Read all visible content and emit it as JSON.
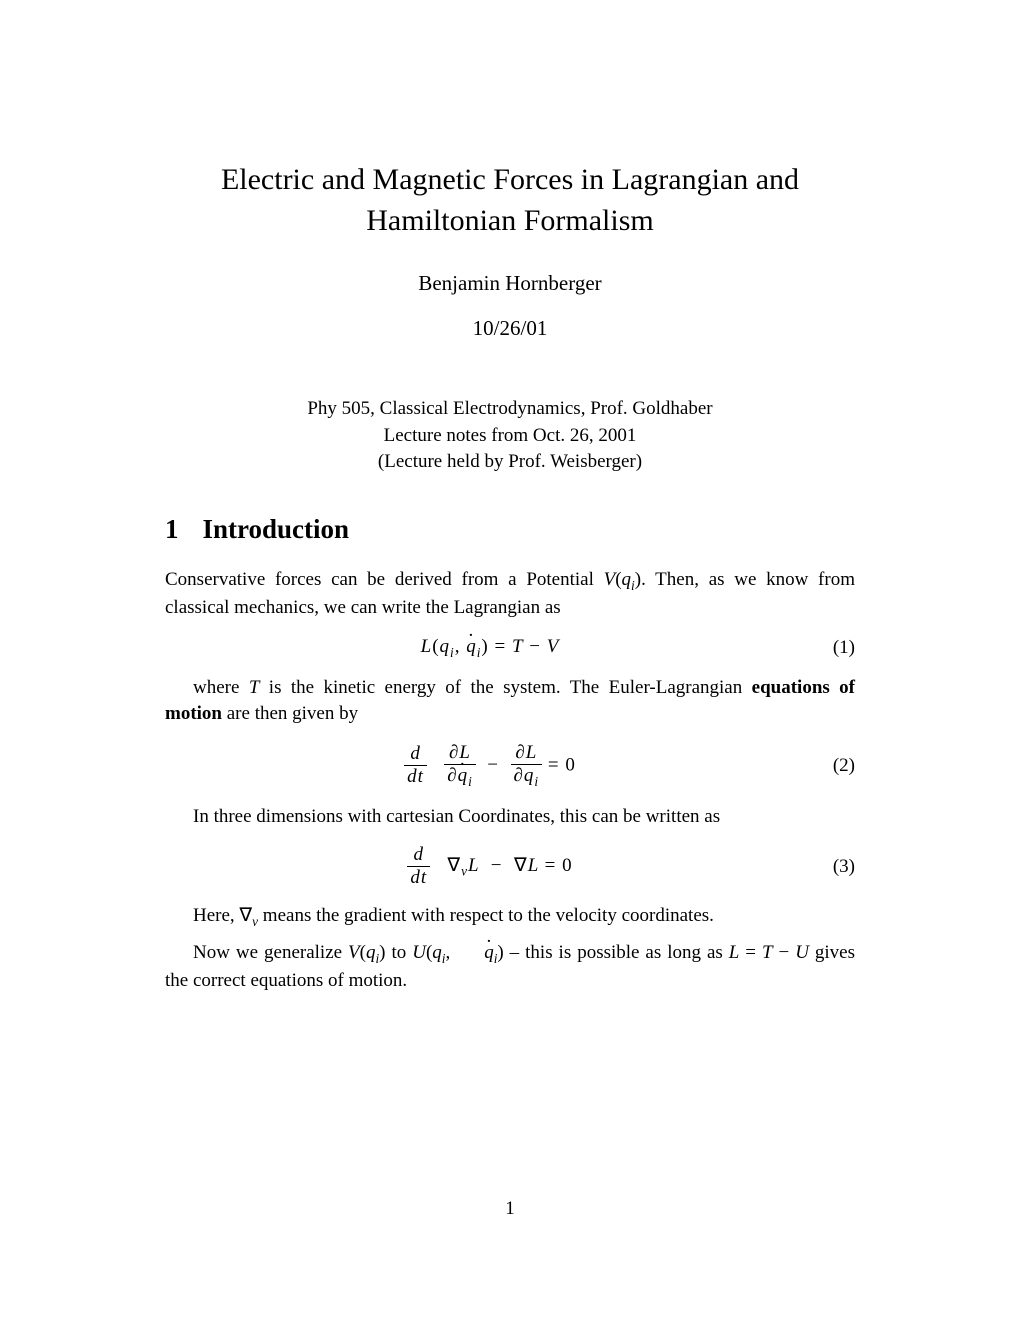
{
  "title": "Electric and Magnetic Forces in Lagrangian and Hamiltonian Formalism",
  "author": "Benjamin Hornberger",
  "date": "10/26/01",
  "course_info": {
    "line1": "Phy 505, Classical Electrodynamics, Prof. Goldhaber",
    "line2": "Lecture notes from Oct. 26, 2001",
    "line3": "(Lecture held by Prof. Weisberger)"
  },
  "section": {
    "number": "1",
    "heading": "Introduction"
  },
  "paragraphs": {
    "p1_a": "Conservative forces can be derived from a Potential ",
    "p1_b": ". Then, as we know from classical mechanics, we can write the Lagrangian as",
    "p2_a": "where ",
    "p2_b": " is the kinetic energy of the system. The Euler-Lagrangian ",
    "p2_bold": "equations of motion",
    "p2_c": " are then given by",
    "p3": "In three dimensions with cartesian Coordinates, this can be written as",
    "p4_a": "Here, ",
    "p4_b": " means the gradient with respect to the velocity coordinates.",
    "p5_a": "Now we generalize ",
    "p5_b": " to ",
    "p5_c": " – this is possible as long as ",
    "p5_d": " gives the correct equations of motion."
  },
  "equations": {
    "eq1_num": "(1)",
    "eq2_num": "(2)",
    "eq3_num": "(3)"
  },
  "page_number": "1"
}
